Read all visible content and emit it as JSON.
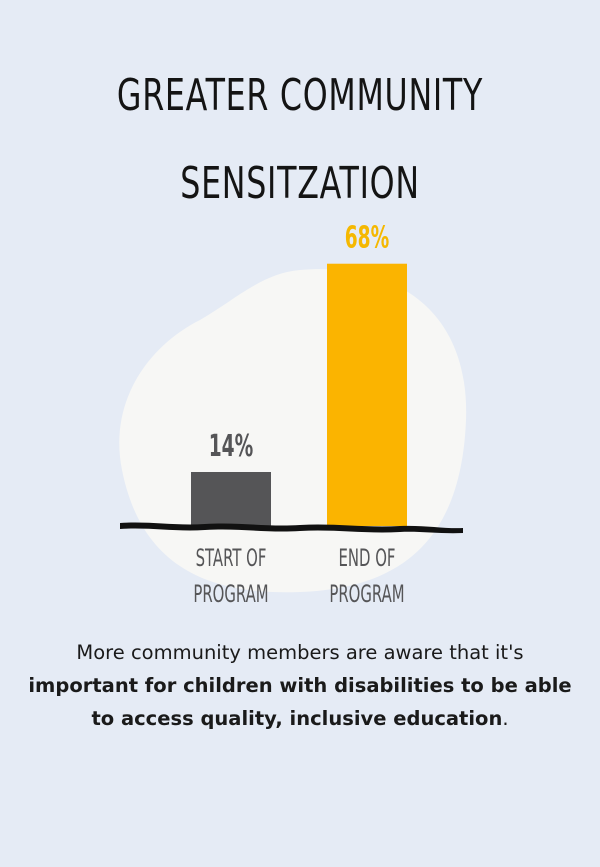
{
  "title": {
    "line1": "GREATER COMMUNITY",
    "line2": "SENSITZATION"
  },
  "colors": {
    "background": "#e5ebf5",
    "blob": "#f7f7f5",
    "start_bar": "#555557",
    "end_bar": "#fbb400",
    "start_label": "#555557",
    "end_label": "#f5b800",
    "baseline": "#111111"
  },
  "chart_data": {
    "type": "bar",
    "categories": [
      "START OF PROGRAM",
      "END OF PROGRAM"
    ],
    "category_lines": [
      [
        "START OF",
        "PROGRAM"
      ],
      [
        "END OF",
        "PROGRAM"
      ]
    ],
    "values": [
      14,
      68
    ],
    "value_labels": [
      "14%",
      "68%"
    ],
    "ylim": [
      0,
      70
    ],
    "grid": false,
    "title": "",
    "xlabel": "",
    "ylabel": ""
  },
  "caption": {
    "part1": "More community members are aware that it's ",
    "part2_bold": "important for children with disabilities to be able to access quality, inclusive education",
    "part3": "."
  }
}
